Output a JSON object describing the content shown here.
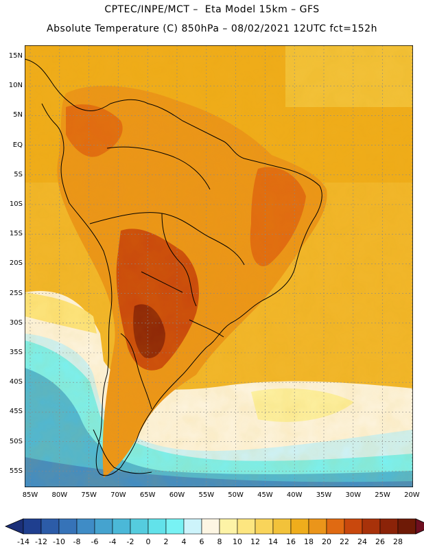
{
  "header": {
    "line1": "CPTEC/INPE/MCT –  Eta Model 15km – GFS",
    "line2": "Absolute Temperature (C) 850hPa – 08/02/2021 12UTC fct=152h"
  },
  "map": {
    "lat_labels": [
      "15N",
      "10N",
      "5N",
      "EQ",
      "5S",
      "10S",
      "15S",
      "20S",
      "25S",
      "30S",
      "35S",
      "40S",
      "45S",
      "50S",
      "55S"
    ],
    "lon_labels": [
      "85W",
      "80W",
      "75W",
      "70W",
      "65W",
      "60W",
      "55W",
      "50W",
      "45W",
      "40W",
      "35W",
      "30W",
      "25W",
      "20W"
    ]
  },
  "legend": {
    "labels": [
      "-14",
      "-12",
      "-10",
      "-8",
      "-6",
      "-4",
      "-2",
      "0",
      "2",
      "4",
      "6",
      "8",
      "10",
      "12",
      "14",
      "16",
      "18",
      "20",
      "22",
      "24",
      "26",
      "28"
    ],
    "colors": [
      "#1f3f8f",
      "#2c5ca8",
      "#3673b8",
      "#3f8cc6",
      "#45a3cf",
      "#4bb8d8",
      "#55ccde",
      "#62e2ea",
      "#78f2f4",
      "#cdf4fb",
      "#fdf6e3",
      "#fdf3a6",
      "#fde680",
      "#f9d45a",
      "#f2c23a",
      "#efad1c",
      "#eb951a",
      "#e06a12",
      "#c9480d",
      "#a8320a",
      "#8b2308",
      "#6e1a06"
    ]
  }
}
